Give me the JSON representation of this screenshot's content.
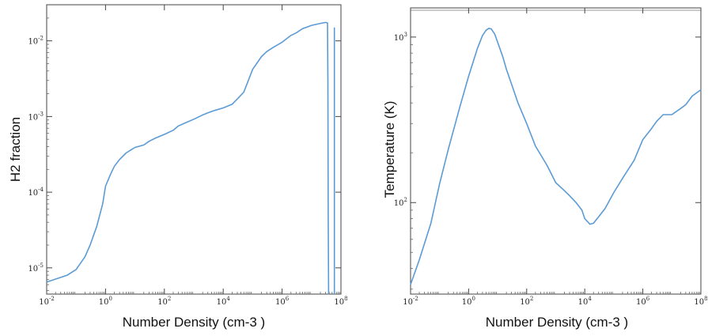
{
  "chart_data": [
    {
      "type": "line",
      "title": "",
      "xlabel": "Number Density (cm-3 )",
      "ylabel": "H2 fraction",
      "xscale": "log",
      "yscale": "log",
      "xlim": [
        0.01,
        100000000
      ],
      "ylim": [
        4.5e-06,
        0.03
      ],
      "grid": false,
      "color": "#5b9bd5",
      "x_ticks": [
        {
          "value": 0.01,
          "base": "10",
          "exp": "-2"
        },
        {
          "value": 1,
          "base": "10",
          "exp": "0"
        },
        {
          "value": 100,
          "base": "10",
          "exp": "2"
        },
        {
          "value": 10000,
          "base": "10",
          "exp": "4"
        },
        {
          "value": 1000000,
          "base": "10",
          "exp": "6"
        },
        {
          "value": 100000000,
          "base": "10",
          "exp": "8"
        }
      ],
      "y_ticks": [
        {
          "value": 1e-05,
          "base": "10",
          "exp": "-5"
        },
        {
          "value": 0.0001,
          "base": "10",
          "exp": "-4"
        },
        {
          "value": 0.001,
          "base": "10",
          "exp": "-3"
        },
        {
          "value": 0.01,
          "base": "10",
          "exp": "-2"
        }
      ],
      "series": [
        {
          "x": [
            0.01,
            0.05,
            0.1,
            0.2,
            0.3,
            0.5,
            0.8,
            1,
            1.5,
            2,
            3,
            5,
            8,
            10,
            20,
            30,
            50,
            100,
            200,
            300,
            500,
            1000,
            2000,
            3000,
            5000,
            10000,
            20000,
            30000,
            50000,
            100000,
            200000,
            300000,
            500000,
            1000000,
            2000000,
            3000000,
            5000000,
            10000000,
            20000000,
            30000000,
            35000000,
            36000000,
            37000000,
            38000000
          ],
          "y": [
            6.5e-06,
            8e-06,
            9.5e-06,
            1.4e-05,
            2e-05,
            3.5e-05,
            7e-05,
            0.00012,
            0.000175,
            0.00022,
            0.00027,
            0.00033,
            0.00037,
            0.00039,
            0.00042,
            0.00047,
            0.00052,
            0.00058,
            0.00066,
            0.00075,
            0.00082,
            0.00092,
            0.00105,
            0.00112,
            0.0012,
            0.0013,
            0.00145,
            0.0017,
            0.0021,
            0.0042,
            0.0062,
            0.0072,
            0.0082,
            0.0096,
            0.0118,
            0.0127,
            0.0145,
            0.016,
            0.017,
            0.0175,
            0.0172,
            0.003,
            5e-05,
            4.5e-06
          ]
        },
        {
          "x": [
            60000000,
            60000000
          ],
          "y": [
            4.5e-06,
            0.015
          ]
        }
      ]
    },
    {
      "type": "line",
      "title": "",
      "xlabel": "Number Density (cm-3 )",
      "ylabel": "Temperature (K)",
      "xscale": "log",
      "yscale": "log",
      "xlim": [
        0.01,
        100000000
      ],
      "ylim": [
        28,
        1500
      ],
      "grid": false,
      "color": "#5b9bd5",
      "x_ticks": [
        {
          "value": 0.01,
          "base": "10",
          "exp": "-2"
        },
        {
          "value": 1,
          "base": "10",
          "exp": "0"
        },
        {
          "value": 100,
          "base": "10",
          "exp": "2"
        },
        {
          "value": 10000,
          "base": "10",
          "exp": "4"
        },
        {
          "value": 1000000,
          "base": "10",
          "exp": "6"
        },
        {
          "value": 100000000,
          "base": "10",
          "exp": "8"
        }
      ],
      "y_ticks": [
        {
          "value": 100,
          "base": "10",
          "exp": "2"
        },
        {
          "value": 1000,
          "base": "10",
          "exp": "3"
        }
      ],
      "series": [
        {
          "x": [
            0.01,
            0.02,
            0.05,
            0.1,
            0.2,
            0.5,
            1,
            2,
            3,
            4,
            5,
            6,
            8,
            10,
            15,
            20,
            30,
            50,
            100,
            200,
            500,
            1000,
            2000,
            3000,
            5000,
            8000,
            10000,
            15000,
            20000,
            30000,
            50000,
            100000,
            200000,
            500000,
            1000000,
            2000000,
            3000000,
            5000000,
            10000000,
            20000000,
            30000000,
            50000000,
            100000000
          ],
          "y": [
            32,
            45,
            75,
            130,
            210,
            380,
            580,
            850,
            1020,
            1100,
            1130,
            1120,
            1040,
            930,
            760,
            640,
            520,
            400,
            300,
            220,
            168,
            132,
            118,
            110,
            100,
            90,
            80,
            74,
            75,
            82,
            92,
            115,
            140,
            180,
            240,
            280,
            310,
            340,
            340,
            370,
            390,
            440,
            480
          ]
        }
      ]
    }
  ]
}
